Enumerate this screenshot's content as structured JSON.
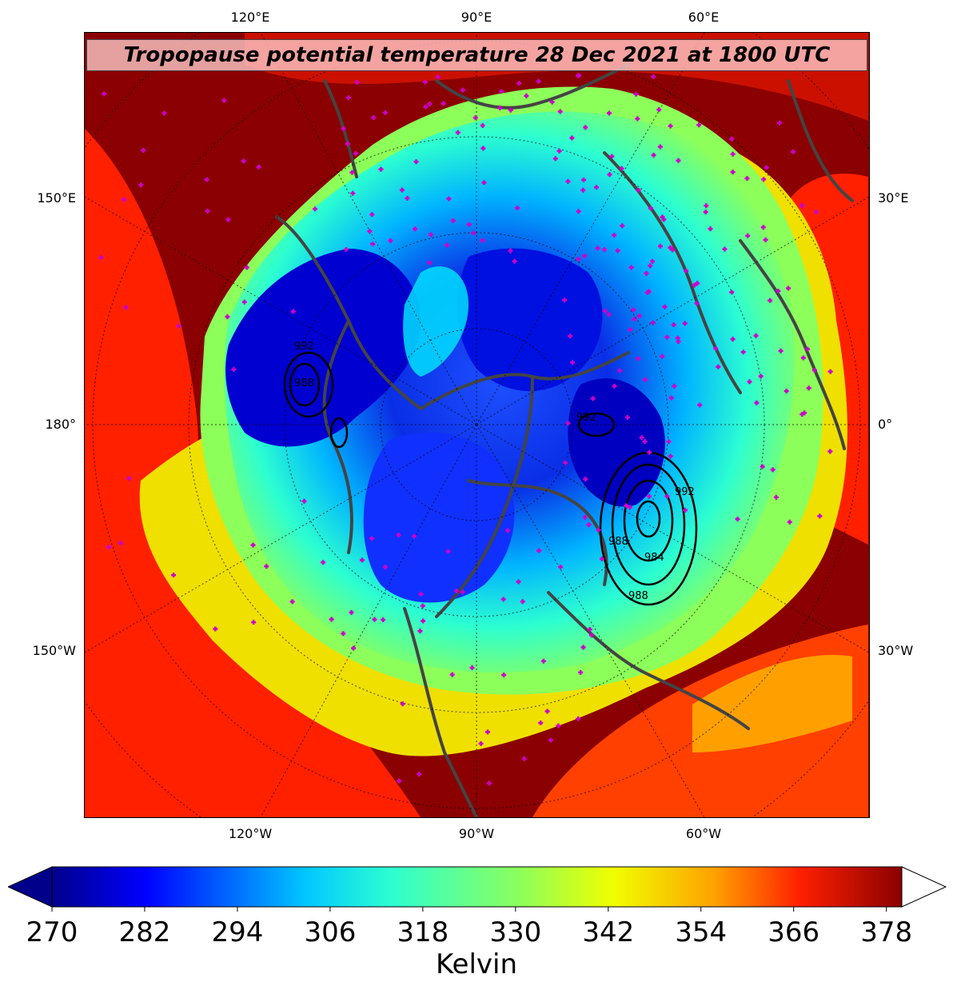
{
  "title": "Tropopause potential temperature 28 Dec 2021 at 1800 UTC",
  "top_labels": [
    "120°E",
    "90°E",
    "60°E"
  ],
  "bottom_labels": [
    "120°W",
    "90°W",
    "60°W"
  ],
  "left_labels": [
    "150°E",
    "180°",
    "150°W"
  ],
  "right_labels": [
    "30°E",
    "0°",
    "30°W"
  ],
  "colorbar": {
    "label": "Kelvin",
    "ticks": [
      "270",
      "282",
      "294",
      "306",
      "318",
      "330",
      "342",
      "354",
      "366",
      "378"
    ],
    "min": 270,
    "max": 380,
    "extend": "both"
  },
  "pressure_contour_labels": [
    "992",
    "988",
    "992",
    "992",
    "988",
    "984",
    "988"
  ],
  "colors": {
    "deep_blue": "#00008b",
    "blue": "#0000ff",
    "cyan": "#00d0ff",
    "aqua": "#2dffd0",
    "green": "#8cff5a",
    "yellow": "#f0ff00",
    "orange": "#ffa000",
    "red": "#ff2000",
    "dark_red": "#8b0000",
    "station_markers": "#cc00cc",
    "coastlines": "#444444"
  }
}
